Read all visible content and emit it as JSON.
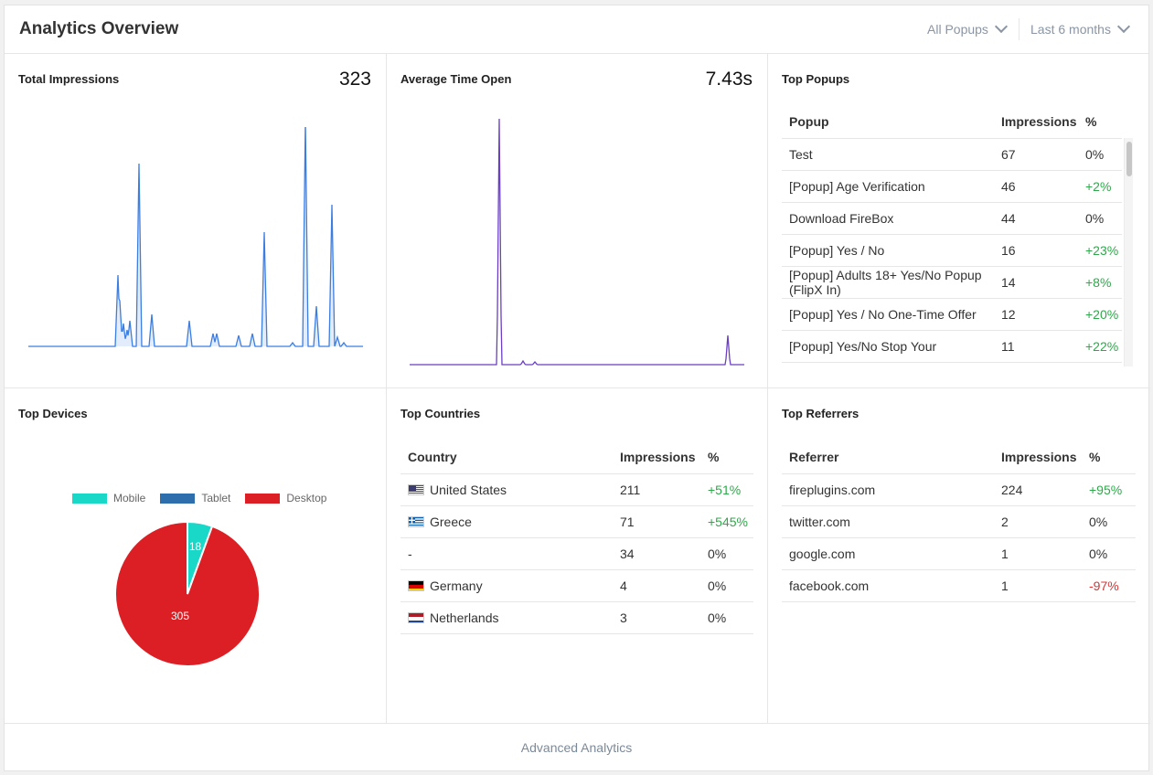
{
  "header": {
    "title": "Analytics Overview",
    "popup_filter": "All Popups",
    "period_filter": "Last 6 months"
  },
  "impressions": {
    "title": "Total Impressions",
    "value": "323",
    "color": "#3b7de0"
  },
  "time_open": {
    "title": "Average Time Open",
    "value": "7.43s",
    "color": "#6a3fc1"
  },
  "top_popups": {
    "title": "Top Popups",
    "columns": [
      "Popup",
      "Impressions",
      "%"
    ],
    "rows": [
      {
        "name": "Test",
        "impressions": "67",
        "pct": "0%",
        "trend": "zero"
      },
      {
        "name": "[Popup] Age Verification",
        "impressions": "46",
        "pct": "+2%",
        "trend": "pos"
      },
      {
        "name": "Download FireBox",
        "impressions": "44",
        "pct": "0%",
        "trend": "zero"
      },
      {
        "name": "[Popup] Yes / No",
        "impressions": "16",
        "pct": "+23%",
        "trend": "pos"
      },
      {
        "name": "[Popup] Adults 18+ Yes/No Popup (FlipX In)",
        "impressions": "14",
        "pct": "+8%",
        "trend": "pos"
      },
      {
        "name": "[Popup] Yes / No One-Time Offer",
        "impressions": "12",
        "pct": "+20%",
        "trend": "pos"
      },
      {
        "name": "[Popup] Yes/No Stop Your",
        "impressions": "11",
        "pct": "+22%",
        "trend": "pos"
      }
    ]
  },
  "top_devices": {
    "title": "Top Devices",
    "legend": [
      {
        "name": "Mobile",
        "color": "#1ad8c8"
      },
      {
        "name": "Tablet",
        "color": "#2f6ead"
      },
      {
        "name": "Desktop",
        "color": "#dc1f24"
      }
    ],
    "slices": [
      {
        "name": "Mobile",
        "value": 18,
        "label": "18",
        "color": "#1ad8c8"
      },
      {
        "name": "Tablet",
        "value": 0,
        "label": "",
        "color": "#2f6ead"
      },
      {
        "name": "Desktop",
        "value": 305,
        "label": "305",
        "color": "#dc1f24"
      }
    ]
  },
  "top_countries": {
    "title": "Top Countries",
    "columns": [
      "Country",
      "Impressions",
      "%"
    ],
    "rows": [
      {
        "flag": "us",
        "name": "United States",
        "impressions": "211",
        "pct": "+51%",
        "trend": "pos"
      },
      {
        "flag": "gr",
        "name": "Greece",
        "impressions": "71",
        "pct": "+545%",
        "trend": "pos"
      },
      {
        "flag": "",
        "name": "-",
        "impressions": "34",
        "pct": "0%",
        "trend": "zero"
      },
      {
        "flag": "de",
        "name": "Germany",
        "impressions": "4",
        "pct": "0%",
        "trend": "zero"
      },
      {
        "flag": "nl",
        "name": "Netherlands",
        "impressions": "3",
        "pct": "0%",
        "trend": "zero"
      }
    ]
  },
  "top_referrers": {
    "title": "Top Referrers",
    "columns": [
      "Referrer",
      "Impressions",
      "%"
    ],
    "rows": [
      {
        "name": "fireplugins.com",
        "impressions": "224",
        "pct": "+95%",
        "trend": "pos"
      },
      {
        "name": "twitter.com",
        "impressions": "2",
        "pct": "0%",
        "trend": "zero"
      },
      {
        "name": "google.com",
        "impressions": "1",
        "pct": "0%",
        "trend": "zero"
      },
      {
        "name": "facebook.com",
        "impressions": "1",
        "pct": "-97%",
        "trend": "neg"
      }
    ]
  },
  "footer": {
    "link": "Advanced Analytics"
  }
}
